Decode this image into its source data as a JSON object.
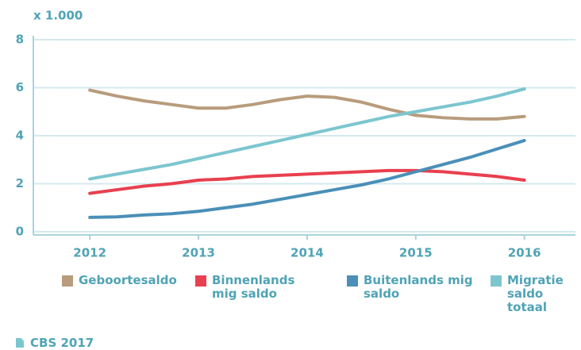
{
  "chart_data": {
    "type": "line",
    "y_label": "x 1.000",
    "source": "CBS 2017",
    "x": [
      2012,
      2012.25,
      2012.5,
      2012.75,
      2013,
      2013.25,
      2013.5,
      2013.75,
      2014,
      2014.25,
      2014.5,
      2014.75,
      2015,
      2015.25,
      2015.5,
      2015.75,
      2016
    ],
    "xlim": [
      2011.48,
      2016.47
    ],
    "xticks": [
      2012,
      2013,
      2014,
      2015,
      2016
    ],
    "ylim": [
      0,
      8
    ],
    "yticks": [
      0,
      2,
      4,
      6,
      8
    ],
    "grid": true,
    "legend": "bottom",
    "series": [
      {
        "name": "Geboortesaldo",
        "color": "#b89c7c",
        "values": [
          5.9,
          5.65,
          5.45,
          5.3,
          5.15,
          5.15,
          5.3,
          5.5,
          5.65,
          5.6,
          5.4,
          5.1,
          4.85,
          4.75,
          4.7,
          4.7,
          4.8
        ]
      },
      {
        "name": "Binnenlands mig saldo",
        "color": "#e8404f",
        "values": [
          1.6,
          1.75,
          1.9,
          2.0,
          2.15,
          2.2,
          2.3,
          2.35,
          2.4,
          2.45,
          2.5,
          2.55,
          2.55,
          2.5,
          2.4,
          2.3,
          2.15
        ]
      },
      {
        "name": "Buitenlands mig saldo",
        "color": "#4a8fb8",
        "values": [
          0.6,
          0.62,
          0.7,
          0.75,
          0.85,
          1.0,
          1.15,
          1.35,
          1.55,
          1.75,
          1.95,
          2.2,
          2.5,
          2.8,
          3.1,
          3.45,
          3.8
        ]
      },
      {
        "name": "Migratie saldo totaal",
        "color": "#7cc6cf",
        "values": [
          2.2,
          2.4,
          2.6,
          2.8,
          3.05,
          3.3,
          3.55,
          3.8,
          4.05,
          4.3,
          4.55,
          4.8,
          5.0,
          5.2,
          5.4,
          5.65,
          5.95
        ]
      }
    ]
  }
}
